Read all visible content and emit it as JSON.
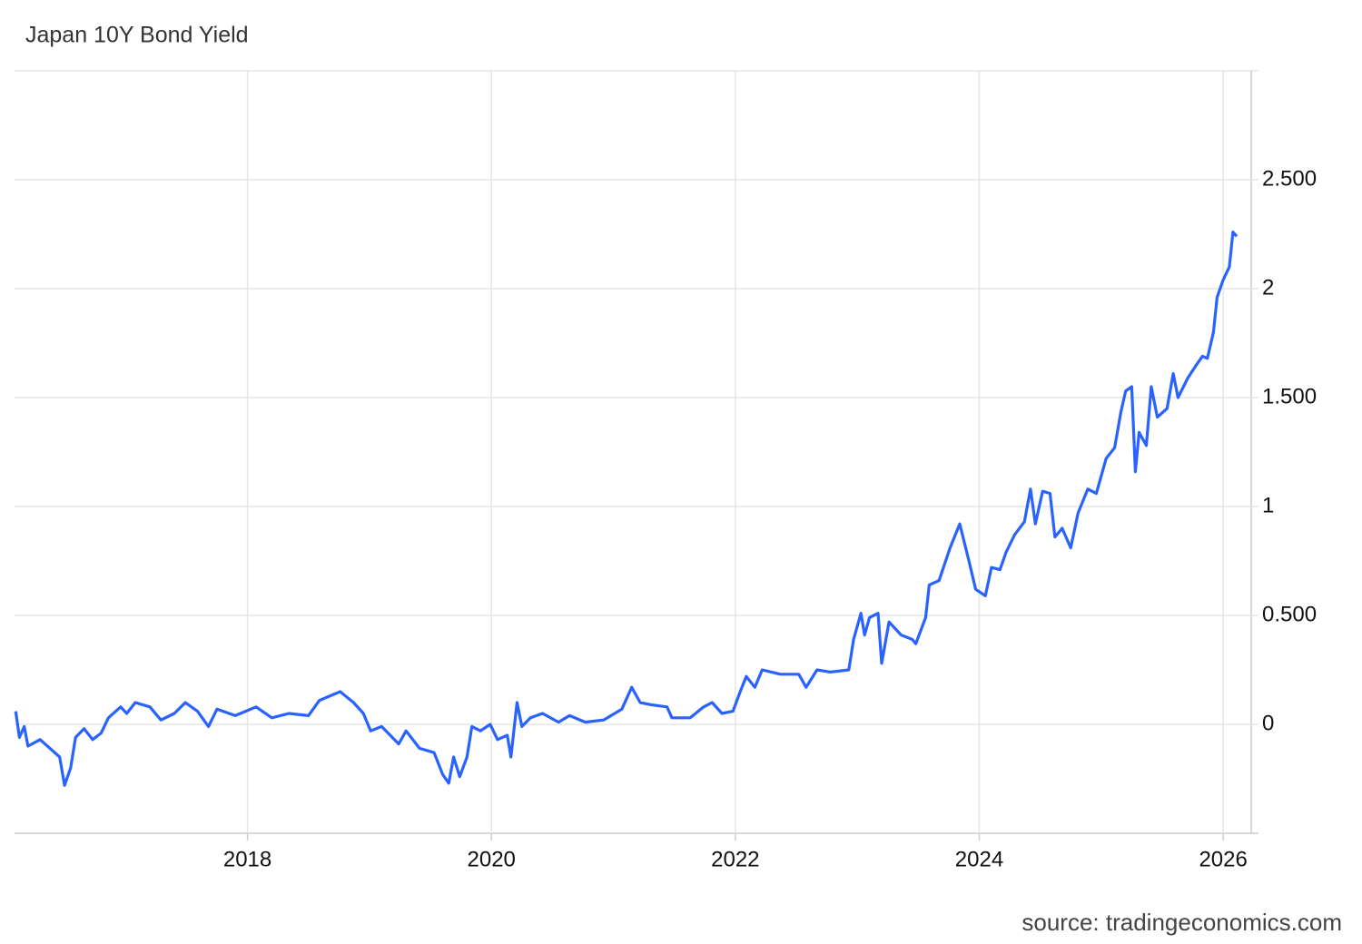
{
  "chart_data": {
    "type": "line",
    "title": "Japan 10Y Bond Yield",
    "source": "source: tradingeconomics.com",
    "color": "#2962ff",
    "grid": true,
    "xlim": [
      2016.09,
      2026.2
    ],
    "xticks": [
      2018,
      2020,
      2022,
      2024,
      2026
    ],
    "ylim": [
      -0.5,
      3.0
    ],
    "yticks": [
      0,
      {
        "value": 0.5,
        "label": "0.500"
      },
      1,
      {
        "value": 1.5,
        "label": "1.500"
      },
      2,
      {
        "value": 2.5,
        "label": "2.500"
      }
    ],
    "x": [
      2016.1,
      2016.13,
      2016.17,
      2016.2,
      2016.3,
      2016.38,
      2016.46,
      2016.5,
      2016.55,
      2016.59,
      2016.66,
      2016.73,
      2016.8,
      2016.86,
      2016.96,
      2017.01,
      2017.08,
      2017.2,
      2017.29,
      2017.4,
      2017.49,
      2017.59,
      2017.68,
      2017.75,
      2017.9,
      2018.07,
      2018.2,
      2018.34,
      2018.5,
      2018.59,
      2018.76,
      2018.87,
      2018.95,
      2019.01,
      2019.1,
      2019.24,
      2019.3,
      2019.41,
      2019.53,
      2019.6,
      2019.65,
      2019.69,
      2019.74,
      2019.8,
      2019.84,
      2019.91,
      2019.99,
      2020.05,
      2020.13,
      2020.16,
      2020.21,
      2020.25,
      2020.32,
      2020.42,
      2020.55,
      2020.64,
      2020.77,
      2020.92,
      2021.07,
      2021.15,
      2021.22,
      2021.31,
      2021.44,
      2021.48,
      2021.63,
      2021.74,
      2021.81,
      2021.89,
      2021.98,
      2022.04,
      2022.09,
      2022.16,
      2022.22,
      2022.37,
      2022.52,
      2022.58,
      2022.67,
      2022.78,
      2022.93,
      2022.97,
      2023.03,
      2023.06,
      2023.1,
      2023.17,
      2023.2,
      2023.26,
      2023.36,
      2023.45,
      2023.48,
      2023.56,
      2023.59,
      2023.67,
      2023.76,
      2023.84,
      2023.92,
      2023.97,
      2024.05,
      2024.1,
      2024.17,
      2024.22,
      2024.29,
      2024.37,
      2024.42,
      2024.46,
      2024.52,
      2024.58,
      2024.62,
      2024.68,
      2024.75,
      2024.81,
      2024.89,
      2024.96,
      2025.04,
      2025.11,
      2025.16,
      2025.2,
      2025.25,
      2025.28,
      2025.31,
      2025.37,
      2025.41,
      2025.46,
      2025.54,
      2025.59,
      2025.63,
      2025.71,
      2025.78,
      2025.83,
      2025.87,
      2025.92,
      2025.95,
      2026.0,
      2026.05,
      2026.08,
      2026.11
    ],
    "values": [
      0.06,
      -0.06,
      -0.01,
      -0.1,
      -0.07,
      -0.11,
      -0.15,
      -0.28,
      -0.2,
      -0.06,
      -0.02,
      -0.07,
      -0.04,
      0.03,
      0.08,
      0.05,
      0.1,
      0.08,
      0.02,
      0.05,
      0.1,
      0.06,
      -0.01,
      0.07,
      0.04,
      0.08,
      0.03,
      0.05,
      0.04,
      0.11,
      0.15,
      0.1,
      0.05,
      -0.03,
      -0.01,
      -0.09,
      -0.03,
      -0.11,
      -0.13,
      -0.23,
      -0.27,
      -0.15,
      -0.24,
      -0.15,
      -0.01,
      -0.03,
      0.0,
      -0.07,
      -0.05,
      -0.15,
      0.1,
      -0.01,
      0.03,
      0.05,
      0.01,
      0.04,
      0.01,
      0.02,
      0.07,
      0.17,
      0.1,
      0.09,
      0.08,
      0.03,
      0.03,
      0.08,
      0.1,
      0.05,
      0.06,
      0.15,
      0.22,
      0.17,
      0.25,
      0.23,
      0.23,
      0.17,
      0.25,
      0.24,
      0.25,
      0.39,
      0.51,
      0.41,
      0.49,
      0.51,
      0.28,
      0.47,
      0.41,
      0.39,
      0.37,
      0.49,
      0.64,
      0.66,
      0.81,
      0.92,
      0.74,
      0.62,
      0.59,
      0.72,
      0.71,
      0.79,
      0.87,
      0.93,
      1.08,
      0.92,
      1.07,
      1.06,
      0.86,
      0.9,
      0.81,
      0.97,
      1.08,
      1.06,
      1.22,
      1.27,
      1.43,
      1.53,
      1.55,
      1.16,
      1.34,
      1.28,
      1.55,
      1.41,
      1.45,
      1.61,
      1.5,
      1.59,
      1.65,
      1.69,
      1.68,
      1.8,
      1.96,
      2.04,
      2.1,
      2.26,
      2.24
    ]
  }
}
